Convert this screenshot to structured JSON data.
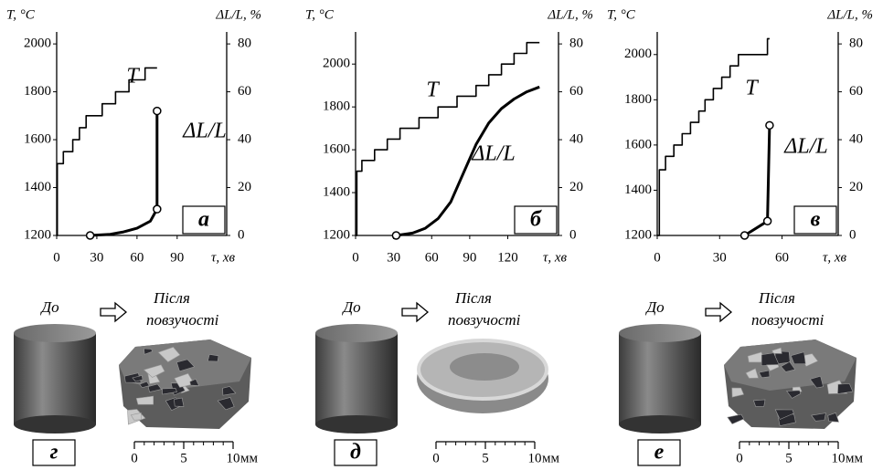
{
  "chart_data": [
    {
      "type": "line",
      "panel_label": "а",
      "ylabel": "T, °C",
      "y2label": "ΔL/L, %",
      "xlabel": "τ, хв",
      "xlim": [
        0,
        127
      ],
      "xticks": [
        0,
        30,
        60,
        90
      ],
      "ylim": [
        1200,
        2050
      ],
      "yticks": [
        1200,
        1400,
        1600,
        1800,
        2000
      ],
      "y2lim": [
        0,
        85
      ],
      "y2ticks": [
        0,
        20,
        40,
        60,
        80
      ],
      "series": [
        {
          "name": "T",
          "color": "#000000",
          "x": [
            0,
            0.5,
            0.5,
            5,
            5,
            12,
            12,
            17,
            17,
            22,
            22,
            34,
            34,
            44,
            44,
            54,
            54,
            66,
            66,
            75
          ],
          "values": [
            1200,
            1200,
            1500,
            1500,
            1550,
            1550,
            1600,
            1600,
            1650,
            1650,
            1700,
            1700,
            1750,
            1750,
            1800,
            1800,
            1850,
            1850,
            1900,
            1900
          ]
        },
        {
          "name": "ΔL/L",
          "color": "#000000",
          "axis": "y2",
          "x": [
            25,
            40,
            50,
            60,
            70,
            75,
            75
          ],
          "values": [
            0,
            0.5,
            1.5,
            3,
            6,
            11,
            52
          ],
          "markers": [
            0,
            5,
            6
          ]
        }
      ]
    },
    {
      "type": "line",
      "panel_label": "б",
      "ylabel": "T, °C",
      "y2label": "ΔL/L, %",
      "xlabel": "τ, хв",
      "xlim": [
        0,
        160
      ],
      "xticks": [
        0,
        30,
        60,
        90,
        120
      ],
      "ylim": [
        1200,
        2150
      ],
      "yticks": [
        1200,
        1400,
        1600,
        1800,
        2000
      ],
      "y2lim": [
        0,
        85
      ],
      "y2ticks": [
        0,
        20,
        40,
        60,
        80
      ],
      "series": [
        {
          "name": "T",
          "color": "#000000",
          "x": [
            0,
            1,
            1,
            5,
            5,
            15,
            15,
            25,
            25,
            35,
            35,
            50,
            50,
            65,
            65,
            80,
            80,
            95,
            95,
            105,
            105,
            115,
            115,
            125,
            125,
            135,
            135,
            145
          ],
          "values": [
            1200,
            1200,
            1500,
            1500,
            1550,
            1550,
            1600,
            1600,
            1650,
            1650,
            1700,
            1700,
            1750,
            1750,
            1800,
            1800,
            1850,
            1850,
            1900,
            1900,
            1950,
            1950,
            2000,
            2000,
            2050,
            2050,
            2100,
            2100
          ]
        },
        {
          "name": "ΔL/L",
          "color": "#000000",
          "axis": "y2",
          "x": [
            32,
            45,
            55,
            65,
            75,
            85,
            95,
            105,
            115,
            125,
            135,
            145
          ],
          "values": [
            0,
            1,
            3,
            7,
            14,
            26,
            38,
            47,
            53,
            57,
            60,
            62
          ],
          "markers": [
            0
          ]
        }
      ]
    },
    {
      "type": "line",
      "panel_label": "в",
      "ylabel": "T, °C",
      "y2label": "ΔL/L, %",
      "xlabel": "τ, хв",
      "xlim": [
        0,
        87
      ],
      "xticks": [
        0,
        30,
        60
      ],
      "ylim": [
        1200,
        2100
      ],
      "yticks": [
        1200,
        1400,
        1600,
        1800,
        2000
      ],
      "y2lim": [
        0,
        85
      ],
      "y2ticks": [
        0,
        20,
        40,
        60,
        80
      ],
      "series": [
        {
          "name": "T",
          "color": "#000000",
          "x": [
            0,
            1,
            1,
            4,
            4,
            8,
            8,
            12,
            12,
            16,
            16,
            20,
            20,
            23,
            23,
            27,
            27,
            31,
            31,
            35,
            35,
            39,
            39,
            53,
            53,
            54
          ],
          "values": [
            1200,
            1200,
            1490,
            1490,
            1550,
            1550,
            1600,
            1600,
            1650,
            1650,
            1700,
            1700,
            1750,
            1750,
            1800,
            1800,
            1850,
            1850,
            1900,
            1900,
            1950,
            1950,
            2000,
            2000,
            2070,
            2070
          ]
        },
        {
          "name": "ΔL/L",
          "color": "#000000",
          "axis": "y2",
          "x": [
            42,
            53,
            54
          ],
          "values": [
            0,
            6,
            46
          ],
          "markers": [
            0,
            1,
            2
          ]
        }
      ]
    }
  ],
  "photos": [
    {
      "label": "г",
      "before": "До",
      "after": [
        "Після",
        "повзучості"
      ],
      "scale_ticks": [
        0,
        5,
        10
      ],
      "scale_unit": "мм"
    },
    {
      "label": "д",
      "before": "До",
      "after": [
        "Після",
        "повзучості"
      ],
      "scale_ticks": [
        0,
        5,
        10
      ],
      "scale_unit": "мм"
    },
    {
      "label": "е",
      "before": "До",
      "after": [
        "Після",
        "повзучості"
      ],
      "scale_ticks": [
        0,
        5,
        10
      ],
      "scale_unit": "мм"
    }
  ]
}
